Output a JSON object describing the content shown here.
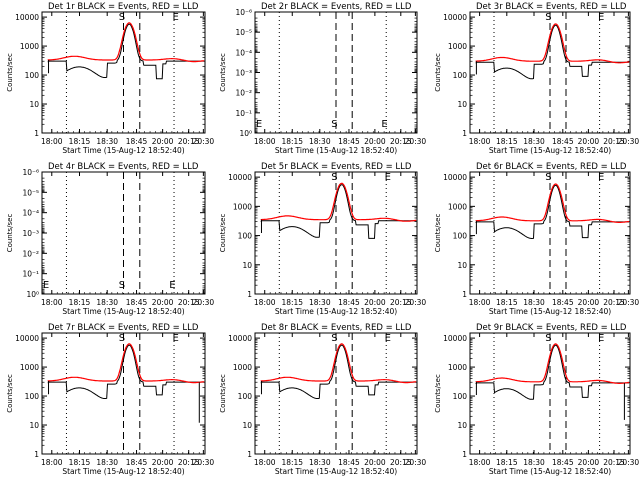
{
  "figure": {
    "xlabel": "Start Time (15-Aug-12 18:52:40)",
    "ylabel": "Counts/sec",
    "x_tick_labels": [
      "18:00",
      "18:15",
      "18:30",
      "18:45",
      "20:00",
      "20:15",
      "20:30"
    ],
    "colors": {
      "events": "#000000",
      "lld": "#ff0000",
      "axes": "#000000",
      "background": "#ffffff"
    }
  },
  "chart_data": [
    {
      "id": "det1",
      "type": "line",
      "title": "Det 1r BLACK = Events, RED = LLD",
      "ylabel": "Counts/sec",
      "ylim": [
        1,
        15000
      ],
      "yticks": [
        1,
        10,
        100,
        1000,
        10000
      ],
      "ytick_labels": [
        "1",
        "10",
        "100",
        "1000",
        "10000"
      ],
      "markers": [
        "S",
        "E"
      ],
      "has_data": true,
      "peak": 6000,
      "base": 330,
      "dip": 75,
      "dip_depth": 0.7,
      "spike": null
    },
    {
      "id": "det2",
      "type": "line",
      "title": "Det 2r BLACK = Events, RED = LLD",
      "ylabel": "Counts/sec",
      "ylim": [
        1,
        1e-06
      ],
      "yticks": [
        1,
        0.1,
        0.01,
        0.001,
        0.0001,
        1e-05,
        1e-06
      ],
      "ytick_labels": [
        "10⁰",
        "10⁻¹",
        "10⁻²",
        "10⁻³",
        "10⁻⁴",
        "10⁻⁵",
        "10⁻⁶"
      ],
      "markers": [
        "E",
        "S",
        "E"
      ],
      "has_data": false
    },
    {
      "id": "det3",
      "type": "line",
      "title": "Det 3r BLACK = Events, RED = LLD",
      "ylabel": "Counts/sec",
      "ylim": [
        1,
        15000
      ],
      "yticks": [
        1,
        10,
        100,
        1000,
        10000
      ],
      "ytick_labels": [
        "1",
        "10",
        "100",
        "1000",
        "10000"
      ],
      "markers": [
        "S",
        "E"
      ],
      "has_data": true,
      "peak": 5500,
      "base": 300,
      "dip": 90,
      "dip_depth": 0.55,
      "spike": null
    },
    {
      "id": "det4",
      "type": "line",
      "title": "Det 4r BLACK = Events, RED = LLD",
      "ylabel": "Counts/sec",
      "ylim": [
        1,
        1e-06
      ],
      "yticks": [
        1,
        0.1,
        0.01,
        0.001,
        0.0001,
        1e-05,
        1e-06
      ],
      "ytick_labels": [
        "10⁰",
        "10⁻¹",
        "10⁻²",
        "10⁻³",
        "10⁻⁴",
        "10⁻⁵",
        "10⁻⁶"
      ],
      "markers": [
        "E",
        "S",
        "E"
      ],
      "has_data": false
    },
    {
      "id": "det5",
      "type": "line",
      "title": "Det 5r BLACK = Events, RED = LLD",
      "ylabel": "Counts/sec",
      "ylim": [
        1,
        15000
      ],
      "yticks": [
        1,
        10,
        100,
        1000,
        10000
      ],
      "ytick_labels": [
        "1",
        "10",
        "100",
        "1000",
        "10000"
      ],
      "markers": [
        "S",
        "E"
      ],
      "has_data": true,
      "peak": 5800,
      "base": 350,
      "dip": 80,
      "dip_depth": 0.6,
      "spike": null
    },
    {
      "id": "det6",
      "type": "line",
      "title": "Det 6r BLACK = Events, RED = LLD",
      "ylabel": "Counts/sec",
      "ylim": [
        1,
        15000
      ],
      "yticks": [
        1,
        10,
        100,
        1000,
        10000
      ],
      "ytick_labels": [
        "1",
        "10",
        "100",
        "1000",
        "10000"
      ],
      "markers": [
        "S",
        "E"
      ],
      "has_data": true,
      "peak": 5500,
      "base": 320,
      "dip": 85,
      "dip_depth": 0.55,
      "spike": null
    },
    {
      "id": "det7",
      "type": "line",
      "title": "Det 7r BLACK = Events, RED = LLD",
      "ylabel": "Counts/sec",
      "ylim": [
        1,
        15000
      ],
      "yticks": [
        1,
        10,
        100,
        1000,
        10000
      ],
      "ytick_labels": [
        "1",
        "10",
        "100",
        "1000",
        "10000"
      ],
      "markers": [
        "S",
        "E"
      ],
      "has_data": true,
      "peak": 6000,
      "base": 330,
      "dip": 110,
      "dip_depth": 0.6,
      "spike": 12
    },
    {
      "id": "det8",
      "type": "line",
      "title": "Det 8r BLACK = Events, RED = LLD",
      "ylabel": "Counts/sec",
      "ylim": [
        1,
        15000
      ],
      "yticks": [
        1,
        10,
        100,
        1000,
        10000
      ],
      "ytick_labels": [
        "1",
        "10",
        "100",
        "1000",
        "10000"
      ],
      "markers": [
        "S",
        "E"
      ],
      "has_data": true,
      "peak": 6000,
      "base": 330,
      "dip": 110,
      "dip_depth": 0.6,
      "spike": null
    },
    {
      "id": "det9",
      "type": "line",
      "title": "Det 9r BLACK = Events, RED = LLD",
      "ylabel": "Counts/sec",
      "ylim": [
        1,
        15000
      ],
      "yticks": [
        1,
        10,
        100,
        1000,
        10000
      ],
      "ytick_labels": [
        "1",
        "10",
        "100",
        "1000",
        "10000"
      ],
      "markers": [
        "S",
        "E"
      ],
      "has_data": true,
      "peak": 6000,
      "base": 310,
      "dip": 90,
      "dip_depth": 0.6,
      "spike": 15
    }
  ]
}
